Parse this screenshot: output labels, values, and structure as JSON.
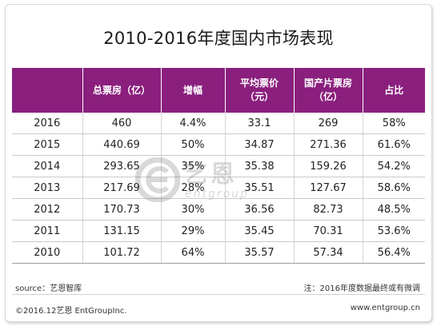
{
  "title": "2010-2016年度国内市场表现",
  "chart_data": {
    "type": "table",
    "title": "2010-2016年度国内市场表现",
    "columns": [
      "",
      "总票房（亿）",
      "增幅",
      "平均票价（元）",
      "国产片票房（亿）",
      "占比"
    ],
    "header": [
      {
        "line1": "",
        "line2": ""
      },
      {
        "line1": "总票房（亿）",
        "line2": ""
      },
      {
        "line1": "增幅",
        "line2": ""
      },
      {
        "line1": "平均票价",
        "line2": "（元）"
      },
      {
        "line1": "国产片票房",
        "line2": "（亿）"
      },
      {
        "line1": "占比",
        "line2": ""
      }
    ],
    "rows": [
      [
        "2016",
        "460",
        "4.4%",
        "33.1",
        "269",
        "58%"
      ],
      [
        "2015",
        "440.69",
        "50%",
        "34.87",
        "271.36",
        "61.6%"
      ],
      [
        "2014",
        "293.65",
        "35%",
        "35.38",
        "159.26",
        "54.2%"
      ],
      [
        "2013",
        "217.69",
        "28%",
        "35.51",
        "127.67",
        "58.6%"
      ],
      [
        "2012",
        "170.73",
        "30%",
        "36.56",
        "82.73",
        "48.5%"
      ],
      [
        "2011",
        "131.15",
        "29%",
        "35.45",
        "70.31",
        "53.6%"
      ],
      [
        "2010",
        "101.72",
        "64%",
        "35.57",
        "57.34",
        "56.4%"
      ]
    ]
  },
  "watermark": {
    "main": "艺恩",
    "sub": "entgroup"
  },
  "footer": {
    "source": "source：艺恩智库",
    "note": "注：2016年度数据最终或有微调",
    "copyright": "©2016.12艺恩 EntGroupInc.",
    "website": "www.entgroup.cn"
  },
  "colors": {
    "header_bg": "#8a1f7d",
    "header_text": "#ffffff",
    "watermark_icon": "#e07a2a"
  }
}
